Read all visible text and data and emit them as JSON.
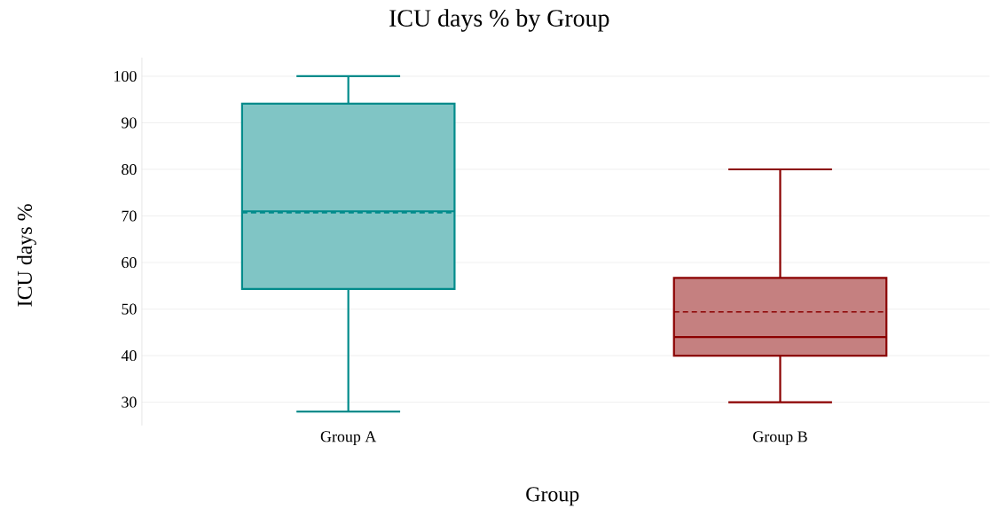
{
  "chart_data": {
    "type": "box",
    "title": "ICU days % by Group",
    "xlabel": "Group",
    "ylabel": "ICU days %",
    "categories": [
      "Group A",
      "Group B"
    ],
    "boxes": [
      {
        "low": 28,
        "q1": 54.3,
        "median": 71,
        "q3": 94.1,
        "high": 100,
        "mean": 70.7
      },
      {
        "low": 30,
        "q1": 40,
        "median": 44,
        "q3": 56.7,
        "high": 80,
        "mean": 49.4
      }
    ],
    "colors": [
      "#008b8b",
      "#8b0000"
    ],
    "ylim": [
      25,
      104
    ],
    "yticks": [
      30,
      40,
      50,
      60,
      70,
      80,
      90,
      100
    ],
    "grid": "y"
  }
}
